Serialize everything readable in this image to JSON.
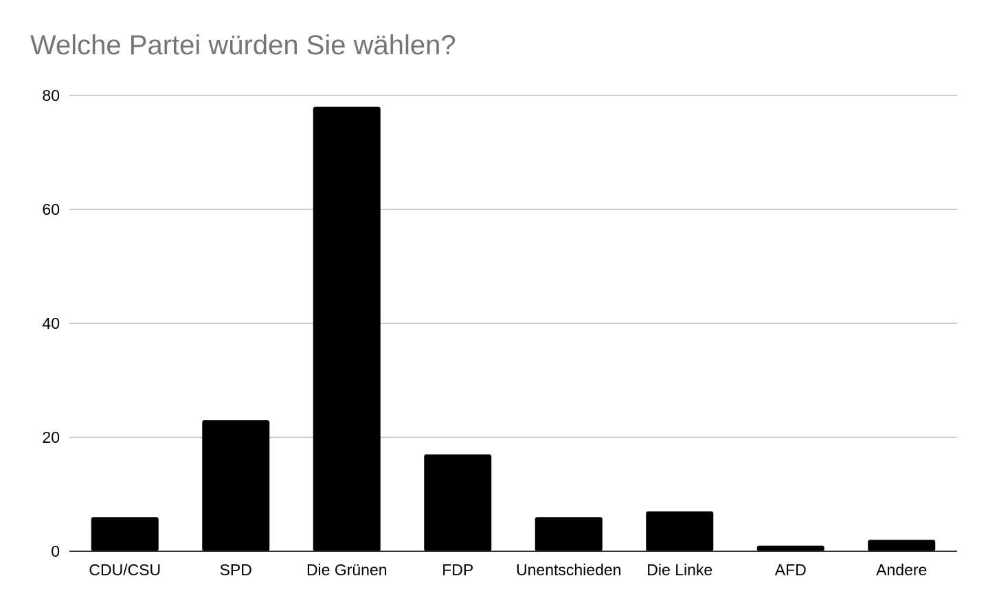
{
  "chart_data": {
    "type": "bar",
    "title": "Welche Partei würden Sie wählen?",
    "categories": [
      "CDU/CSU",
      "SPD",
      "Die Grünen",
      "FDP",
      "Unentschieden",
      "Die Linke",
      "AFD",
      "Andere"
    ],
    "values": [
      6,
      23,
      78,
      17,
      6,
      7,
      1,
      2
    ],
    "xlabel": "",
    "ylabel": "",
    "ylim": [
      0,
      80
    ],
    "yticks": [
      0,
      20,
      40,
      60,
      80
    ],
    "grid": true,
    "legend": "none",
    "colors": {
      "bar": "#000000",
      "grid": "#cccccc",
      "axis": "#333333",
      "title": "#757575"
    }
  }
}
